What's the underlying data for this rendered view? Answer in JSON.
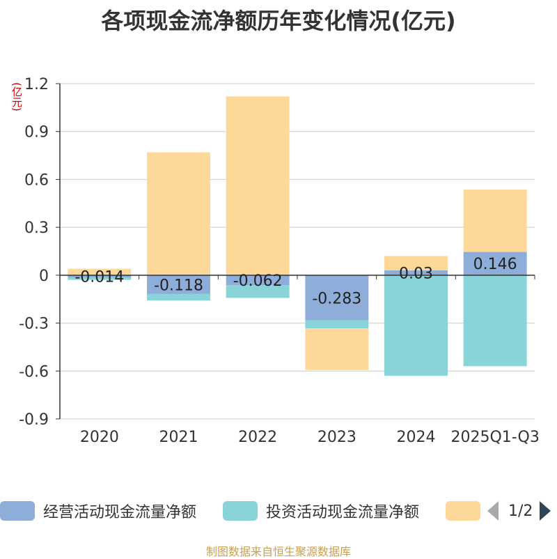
{
  "title": "各项现金流净额历年变化情况(亿元)",
  "source": "制图数据来自恒生聚源数据库",
  "colors": {
    "operating": "#8eadd9",
    "investing": "#88d4d8",
    "financing": "#fed899",
    "grid": "#cccccc",
    "axis": "#333333",
    "text": "#333333",
    "unit": "#cc0000"
  },
  "legend": {
    "items": [
      {
        "label": "经营活动现金流量净额",
        "color": "#8eadd9"
      },
      {
        "label": "投资活动现金流量净额",
        "color": "#88d4d8"
      },
      {
        "label": "",
        "color": "#fed899"
      }
    ],
    "page_text": "1/2"
  },
  "chart_data": {
    "type": "bar",
    "stacked": true,
    "categories": [
      "2020",
      "2021",
      "2022",
      "2023",
      "2024",
      "2025Q1-Q3"
    ],
    "ylabel": "(亿元)",
    "ylim": [
      -0.9,
      1.2
    ],
    "yticks": [
      -0.9,
      -0.6,
      -0.3,
      0,
      0.3,
      0.6,
      0.9,
      1.2
    ],
    "ytick_labels": [
      "-0.9",
      "-0.6",
      "-0.3",
      "0",
      "0.3",
      "0.6",
      "0.9",
      "1.2"
    ],
    "grid": true,
    "legend_position": "bottom",
    "series": [
      {
        "name": "经营活动现金流量净额",
        "values": [
          -0.014,
          -0.118,
          -0.062,
          -0.283,
          0.03,
          0.146
        ],
        "labels": [
          "-0.014",
          "-0.118",
          "-0.062",
          "-0.283",
          "0.03",
          "0.146"
        ]
      },
      {
        "name": "投资活动现金流量净额",
        "values": [
          -0.015,
          -0.04,
          -0.08,
          -0.05,
          -0.63,
          -0.57
        ]
      },
      {
        "values": [
          0.04,
          0.77,
          1.12,
          -0.26,
          0.09,
          0.39
        ]
      }
    ]
  }
}
